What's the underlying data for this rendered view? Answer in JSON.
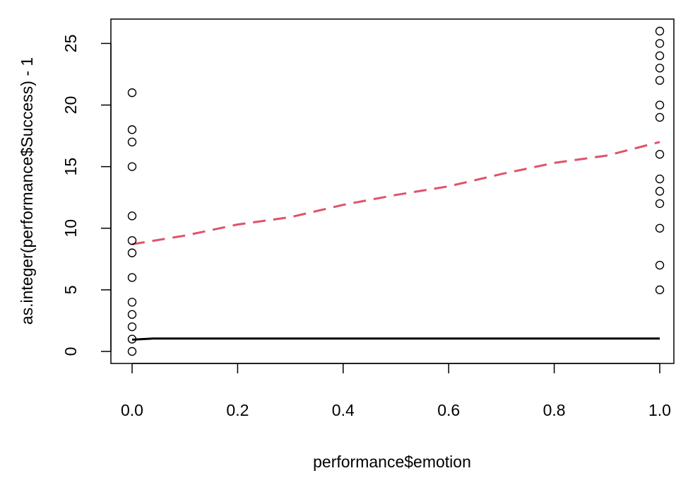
{
  "chart_data": {
    "type": "scatter",
    "title": "",
    "xlabel": "performance$emotion",
    "ylabel": "as.integer(performance$Success) - 1",
    "xlim": [
      0.0,
      1.0
    ],
    "ylim": [
      0,
      26
    ],
    "x_ticks": [
      0.0,
      0.2,
      0.4,
      0.6,
      0.8,
      1.0
    ],
    "x_tick_labels": [
      "0.0",
      "0.2",
      "0.4",
      "0.6",
      "0.8",
      "1.0"
    ],
    "y_ticks": [
      0,
      5,
      10,
      15,
      20,
      25
    ],
    "y_tick_labels": [
      "0",
      "5",
      "10",
      "15",
      "20",
      "25"
    ],
    "grid": false,
    "legend": "none",
    "points": {
      "marker": "open-circle",
      "color": "#000000",
      "data": [
        {
          "x": 0,
          "y": 0
        },
        {
          "x": 0,
          "y": 1
        },
        {
          "x": 0,
          "y": 2
        },
        {
          "x": 0,
          "y": 3
        },
        {
          "x": 0,
          "y": 4
        },
        {
          "x": 0,
          "y": 6
        },
        {
          "x": 0,
          "y": 8
        },
        {
          "x": 0,
          "y": 9
        },
        {
          "x": 0,
          "y": 11
        },
        {
          "x": 0,
          "y": 15
        },
        {
          "x": 0,
          "y": 17
        },
        {
          "x": 0,
          "y": 18
        },
        {
          "x": 0,
          "y": 21
        },
        {
          "x": 1,
          "y": 5
        },
        {
          "x": 1,
          "y": 7
        },
        {
          "x": 1,
          "y": 10
        },
        {
          "x": 1,
          "y": 12
        },
        {
          "x": 1,
          "y": 13
        },
        {
          "x": 1,
          "y": 14
        },
        {
          "x": 1,
          "y": 16
        },
        {
          "x": 1,
          "y": 19
        },
        {
          "x": 1,
          "y": 20
        },
        {
          "x": 1,
          "y": 22
        },
        {
          "x": 1,
          "y": 23
        },
        {
          "x": 1,
          "y": 24
        },
        {
          "x": 1,
          "y": 25
        },
        {
          "x": 1,
          "y": 26
        }
      ]
    },
    "lines": [
      {
        "style": "solid",
        "color": "#000000",
        "x": [
          0.0,
          0.04,
          1.0
        ],
        "y": [
          0.95,
          1.05,
          1.05
        ]
      },
      {
        "style": "dashed",
        "color": "#DF536B",
        "x": [
          0.0,
          0.1,
          0.2,
          0.3,
          0.4,
          0.5,
          0.6,
          0.7,
          0.8,
          0.9,
          1.0
        ],
        "y": [
          8.7,
          9.4,
          10.3,
          10.9,
          11.9,
          12.7,
          13.4,
          14.4,
          15.3,
          15.9,
          17.0
        ]
      }
    ]
  }
}
